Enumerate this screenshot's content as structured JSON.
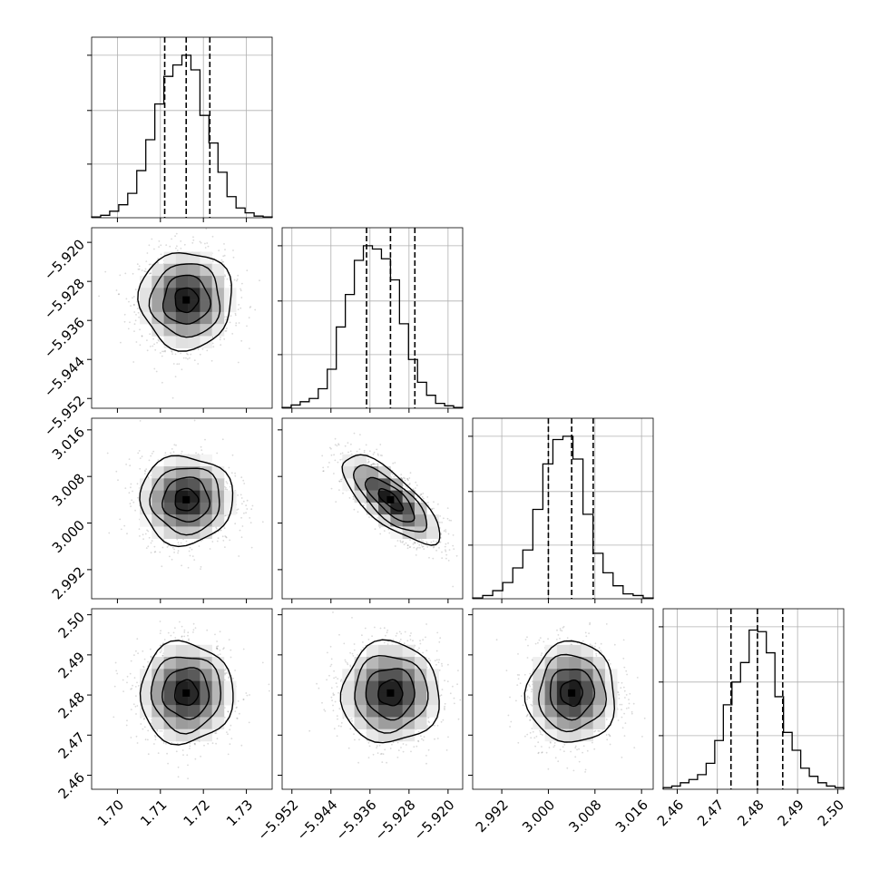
{
  "chart_data": {
    "type": "corner",
    "grid": true,
    "parameters": [
      {
        "label": "",
        "range": [
          1.694,
          1.736
        ],
        "ticks": [
          1.7,
          1.71,
          1.72,
          1.73
        ],
        "tick_labels": [
          "1.70",
          "1.71",
          "1.72",
          "1.73"
        ],
        "quantiles": [
          1.711,
          1.716,
          1.7215
        ],
        "center": 1.716,
        "sigma": 0.0054,
        "hist_values": [
          0.005,
          0.015,
          0.04,
          0.08,
          0.15,
          0.29,
          0.48,
          0.7,
          0.87,
          0.94,
          1.0,
          0.91,
          0.63,
          0.46,
          0.28,
          0.13,
          0.06,
          0.03,
          0.01,
          0.005
        ]
      },
      {
        "label": "",
        "range": [
          -5.954,
          -5.917
        ],
        "ticks": [
          -5.952,
          -5.944,
          -5.936,
          -5.928,
          -5.92
        ],
        "tick_labels": [
          "−5.952",
          "−5.944",
          "−5.936",
          "−5.928",
          "−5.920"
        ],
        "quantiles": [
          -5.9367,
          -5.9318,
          -5.9268
        ],
        "center": -5.9318,
        "sigma": 0.005,
        "hist_values": [
          0.005,
          0.02,
          0.04,
          0.06,
          0.12,
          0.24,
          0.5,
          0.7,
          0.91,
          1.0,
          0.98,
          0.92,
          0.79,
          0.52,
          0.3,
          0.16,
          0.08,
          0.03,
          0.015,
          0.005
        ]
      },
      {
        "label": "",
        "range": [
          2.987,
          3.018
        ],
        "ticks": [
          2.992,
          3.0,
          3.008,
          3.016
        ],
        "tick_labels": [
          "2.992",
          "3.000",
          "3.008",
          "3.016"
        ],
        "quantiles": [
          3.0,
          3.004,
          3.0077
        ],
        "center": 3.004,
        "sigma": 0.0038,
        "hist_values": [
          0.005,
          0.02,
          0.05,
          0.1,
          0.19,
          0.3,
          0.55,
          0.83,
          0.98,
          1.0,
          0.86,
          0.52,
          0.28,
          0.16,
          0.08,
          0.03,
          0.02,
          0.005
        ]
      },
      {
        "label": "",
        "range": [
          2.4565,
          2.5015
        ],
        "ticks": [
          2.46,
          2.47,
          2.48,
          2.49,
          2.5
        ],
        "tick_labels": [
          "2.46",
          "2.47",
          "2.48",
          "2.49",
          "2.50"
        ],
        "quantiles": [
          2.4734,
          2.48,
          2.4863
        ],
        "center": 2.4805,
        "sigma": 0.0063,
        "hist_values": [
          0.01,
          0.02,
          0.04,
          0.06,
          0.09,
          0.16,
          0.3,
          0.52,
          0.66,
          0.78,
          0.98,
          0.97,
          0.84,
          0.57,
          0.35,
          0.24,
          0.13,
          0.08,
          0.04,
          0.02,
          0.01
        ]
      }
    ],
    "correlations": [
      {
        "i": 1,
        "j": 0,
        "rho": 0.0
      },
      {
        "i": 2,
        "j": 0,
        "rho": 0.0
      },
      {
        "i": 2,
        "j": 1,
        "rho": -0.75
      },
      {
        "i": 3,
        "j": 0,
        "rho": 0.0
      },
      {
        "i": 3,
        "j": 1,
        "rho": 0.0
      },
      {
        "i": 3,
        "j": 2,
        "rho": 0.0
      }
    ],
    "contour_levels_sigma": [
      0.5,
      1.0,
      1.5,
      2.0
    ]
  }
}
